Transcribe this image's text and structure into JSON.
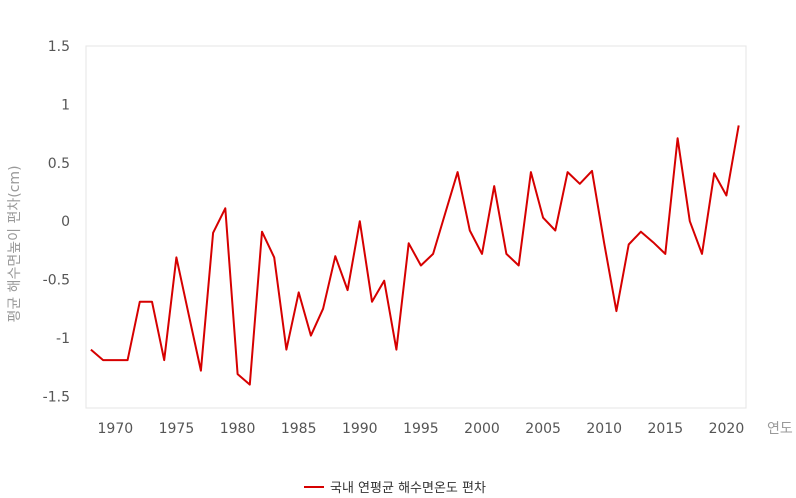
{
  "chart_data": {
    "type": "line",
    "title": "",
    "xlabel": "연도",
    "ylabel": "평균 해수면높이 편차(cm)",
    "xlim": [
      1967.6,
      2021.6
    ],
    "ylim": [
      -1.6,
      1.5
    ],
    "x_ticks": [
      1970,
      1975,
      1980,
      1985,
      1990,
      1995,
      2000,
      2005,
      2010,
      2015,
      2020
    ],
    "y_ticks": [
      -1.5,
      -1,
      -0.5,
      0,
      0.5,
      1,
      1.5
    ],
    "y_tick_labels": [
      "-1.5",
      "-1",
      "-0.5",
      "0",
      "0.5",
      "1",
      "1.5"
    ],
    "grid": false,
    "legend_position": "bottom-center",
    "colors": {
      "line": "#d60000",
      "frame": "#e5e5e5",
      "tick_text": "#555555",
      "axis_title": "#999999"
    },
    "series": [
      {
        "name": "국내 연평균 해수면온도 편차",
        "x": [
          1968,
          1969,
          1970,
          1971,
          1972,
          1973,
          1974,
          1975,
          1976,
          1977,
          1978,
          1979,
          1980,
          1981,
          1982,
          1983,
          1984,
          1985,
          1986,
          1987,
          1988,
          1989,
          1990,
          1991,
          1992,
          1993,
          1994,
          1995,
          1996,
          1997,
          1998,
          1999,
          2000,
          2001,
          2002,
          2003,
          2004,
          2005,
          2006,
          2007,
          2008,
          2009,
          2010,
          2011,
          2012,
          2013,
          2014,
          2015,
          2016,
          2017,
          2018,
          2019,
          2020,
          2021
        ],
        "values": [
          -1.1,
          -1.19,
          -1.19,
          -1.19,
          -0.69,
          -0.69,
          -1.19,
          -0.31,
          -0.8,
          -1.28,
          -0.1,
          0.11,
          -1.31,
          -1.4,
          -0.09,
          -0.31,
          -1.1,
          -0.61,
          -0.98,
          -0.75,
          -0.3,
          -0.59,
          0.0,
          -0.69,
          -0.51,
          -1.1,
          -0.19,
          -0.38,
          -0.28,
          0.07,
          0.42,
          -0.08,
          -0.28,
          0.3,
          -0.28,
          -0.38,
          0.42,
          0.03,
          -0.08,
          0.42,
          0.32,
          0.43,
          -0.19,
          -0.77,
          -0.2,
          -0.09,
          -0.18,
          -0.28,
          0.71,
          0.0,
          -0.28,
          0.41,
          0.22,
          0.82
        ]
      }
    ]
  }
}
